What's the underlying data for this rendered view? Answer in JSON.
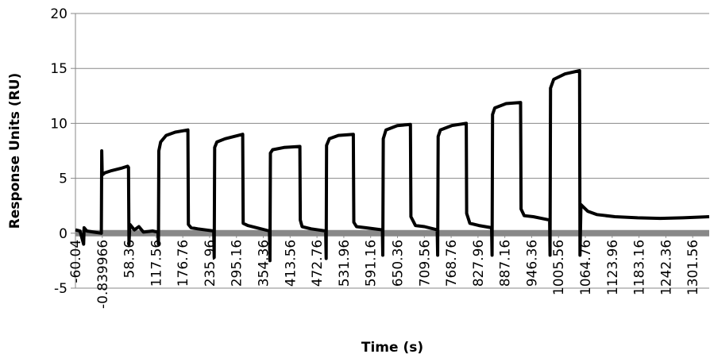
{
  "chart_data": {
    "type": "line",
    "x_label": "Time (s)",
    "y_label": "Response Units (RU)",
    "xlim": [
      -60.04,
      1338
    ],
    "ylim": [
      -5,
      20
    ],
    "xticks": [
      -60.04,
      -0.839966,
      58.36,
      117.56,
      176.76,
      235.96,
      295.16,
      354.36,
      413.56,
      472.76,
      531.96,
      591.16,
      650.36,
      709.56,
      768.76,
      827.96,
      887.16,
      946.36,
      1005.56,
      1064.76,
      1123.96,
      1183.16,
      1242.36,
      1301.56
    ],
    "yticks": [
      -5,
      0,
      5,
      10,
      15,
      20
    ],
    "grid": true,
    "series": [
      {
        "color": "#000000",
        "x": [
          -60,
          -50,
          -42,
          -41,
          -35,
          -20,
          -3,
          -2,
          -1,
          5,
          20,
          40,
          55,
          57,
          58,
          60,
          70,
          80,
          90,
          110,
          122,
          123,
          124,
          128,
          140,
          160,
          188,
          189,
          195,
          210,
          245,
          246,
          247,
          252,
          270,
          309,
          310,
          320,
          340,
          368,
          369,
          370,
          375,
          400,
          435,
          436,
          440,
          460,
          492,
          493,
          494,
          500,
          520,
          553,
          554,
          560,
          580,
          617,
          618,
          619,
          625,
          650,
          679,
          680,
          690,
          710,
          738,
          739,
          740,
          745,
          770,
          802,
          803,
          810,
          830,
          858,
          859,
          860,
          865,
          890,
          922,
          923,
          930,
          950,
          986,
          987,
          988,
          995,
          1020,
          1052,
          1053,
          1055,
          1070,
          1090,
          1130,
          1180,
          1230,
          1280,
          1338
        ],
        "values": [
          0.3,
          0.2,
          -1.0,
          0.5,
          0.2,
          0.1,
          0.0,
          7.5,
          5.3,
          5.5,
          5.7,
          5.9,
          6.1,
          6.0,
          -1.0,
          0.8,
          0.3,
          0.6,
          0.1,
          0.2,
          0.1,
          -1.0,
          7.5,
          8.3,
          8.9,
          9.2,
          9.4,
          0.8,
          0.5,
          0.4,
          0.2,
          -2.2,
          7.8,
          8.3,
          8.6,
          9.0,
          0.9,
          0.7,
          0.5,
          0.2,
          -2.5,
          7.3,
          7.6,
          7.8,
          7.9,
          1.2,
          0.6,
          0.4,
          0.2,
          -2.3,
          8.0,
          8.6,
          8.9,
          9.0,
          1.0,
          0.6,
          0.5,
          0.3,
          -2.0,
          8.6,
          9.4,
          9.8,
          9.9,
          1.5,
          0.7,
          0.6,
          0.3,
          -2.0,
          8.8,
          9.4,
          9.8,
          10.0,
          1.8,
          0.9,
          0.7,
          0.5,
          -2.0,
          10.8,
          11.4,
          11.8,
          11.9,
          2.2,
          1.6,
          1.5,
          1.2,
          -2.0,
          13.2,
          14.0,
          14.5,
          14.8,
          -2.0,
          2.6,
          2.0,
          1.7,
          1.5,
          1.4,
          1.35,
          1.4,
          1.5
        ]
      }
    ]
  }
}
